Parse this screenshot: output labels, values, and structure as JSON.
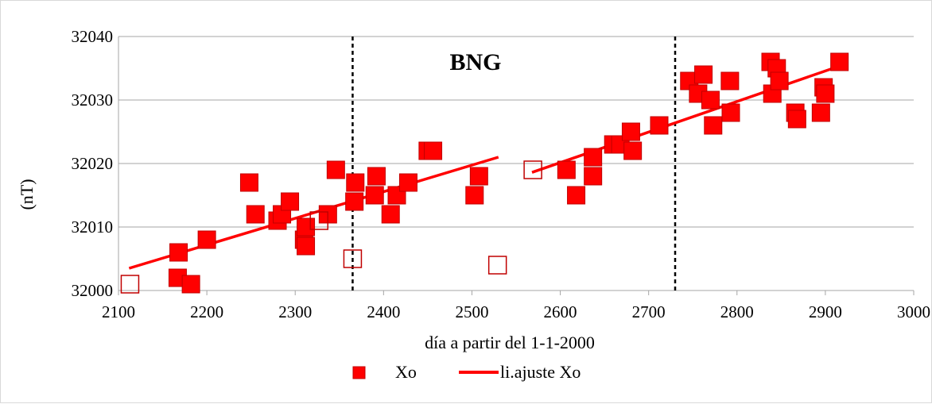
{
  "chart_data": {
    "type": "scatter",
    "title": "",
    "annotation": "BNG",
    "xlabel": "día a partir del 1-1-2000",
    "ylabel": "(nT)",
    "xlim": [
      2100,
      3000
    ],
    "ylim": [
      32000,
      32040
    ],
    "x_ticks": [
      2100,
      2200,
      2300,
      2400,
      2500,
      2600,
      2700,
      2800,
      2900,
      3000
    ],
    "y_ticks": [
      32000,
      32010,
      32020,
      32030,
      32040
    ],
    "grid": true,
    "legend_position": "bottom",
    "vertical_lines": [
      2365,
      2730
    ],
    "colors": {
      "points": "#ff0000",
      "point_edge": "#c00000",
      "fit": "#ff0000",
      "grid": "#a6a6a6"
    },
    "series": [
      {
        "name": "Xo",
        "kind": "marker",
        "points": [
          [
            2168,
            32006
          ],
          [
            2167,
            32002
          ],
          [
            2182,
            32001
          ],
          [
            2200,
            32008
          ],
          [
            2248,
            32017
          ],
          [
            2255,
            32012
          ],
          [
            2280,
            32011
          ],
          [
            2285,
            32012
          ],
          [
            2294,
            32014
          ],
          [
            2310,
            32008
          ],
          [
            2312,
            32007
          ],
          [
            2312,
            32010
          ],
          [
            2337,
            32012
          ],
          [
            2346,
            32019
          ],
          [
            2368,
            32017
          ],
          [
            2367,
            32014
          ],
          [
            2392,
            32018
          ],
          [
            2390,
            32015
          ],
          [
            2408,
            32012
          ],
          [
            2415,
            32015
          ],
          [
            2428,
            32017
          ],
          [
            2450,
            32022
          ],
          [
            2456,
            32022
          ],
          [
            2503,
            32015
          ],
          [
            2508,
            32018
          ],
          [
            2607,
            32019
          ],
          [
            2618,
            32015
          ],
          [
            2637,
            32021
          ],
          [
            2637,
            32018
          ],
          [
            2660,
            32023
          ],
          [
            2668,
            32023
          ],
          [
            2680,
            32025
          ],
          [
            2682,
            32022
          ],
          [
            2712,
            32026
          ],
          [
            2746,
            32033
          ],
          [
            2756,
            32031
          ],
          [
            2762,
            32034
          ],
          [
            2770,
            32030
          ],
          [
            2773,
            32026
          ],
          [
            2792,
            32033
          ],
          [
            2793,
            32028
          ],
          [
            2838,
            32036
          ],
          [
            2840,
            32031
          ],
          [
            2845,
            32035
          ],
          [
            2848,
            32033
          ],
          [
            2866,
            32028
          ],
          [
            2868,
            32027
          ],
          [
            2895,
            32028
          ],
          [
            2898,
            32032
          ],
          [
            2900,
            32031
          ],
          [
            2916,
            32036
          ]
        ]
      },
      {
        "name": "",
        "kind": "outlier",
        "points": [
          [
            2113,
            32001
          ],
          [
            2327,
            32011
          ],
          [
            2365,
            32005
          ],
          [
            2529,
            32004
          ],
          [
            2569,
            32019
          ]
        ]
      },
      {
        "name": "li.ajuste Xo",
        "kind": "line",
        "segments": [
          [
            [
              2112,
              32003.5
            ],
            [
              2530,
              32021
            ]
          ],
          [
            [
              2568,
              32018.6
            ],
            [
              2915,
              32035.3
            ]
          ]
        ]
      }
    ]
  },
  "legend": {
    "items": [
      {
        "label": "Xo"
      },
      {
        "label": "li.ajuste Xo"
      }
    ]
  }
}
